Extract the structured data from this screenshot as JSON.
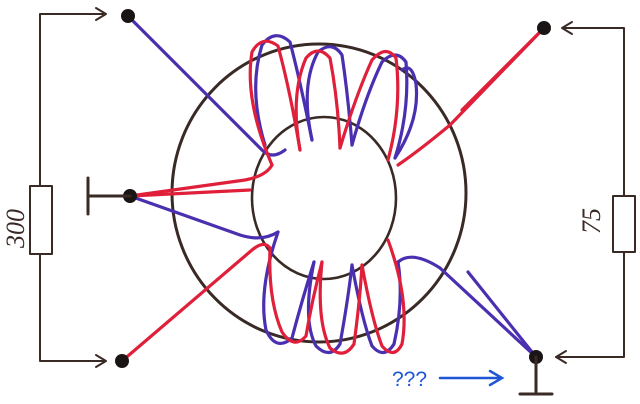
{
  "labels": {
    "left_resistor": "300",
    "right_resistor": "75",
    "question_note": "???"
  },
  "colors": {
    "wire_primary": "#e0203a",
    "wire_secondary": "#4a2fb0",
    "ink": "#3a2a26",
    "note": "#1f56d6"
  }
}
